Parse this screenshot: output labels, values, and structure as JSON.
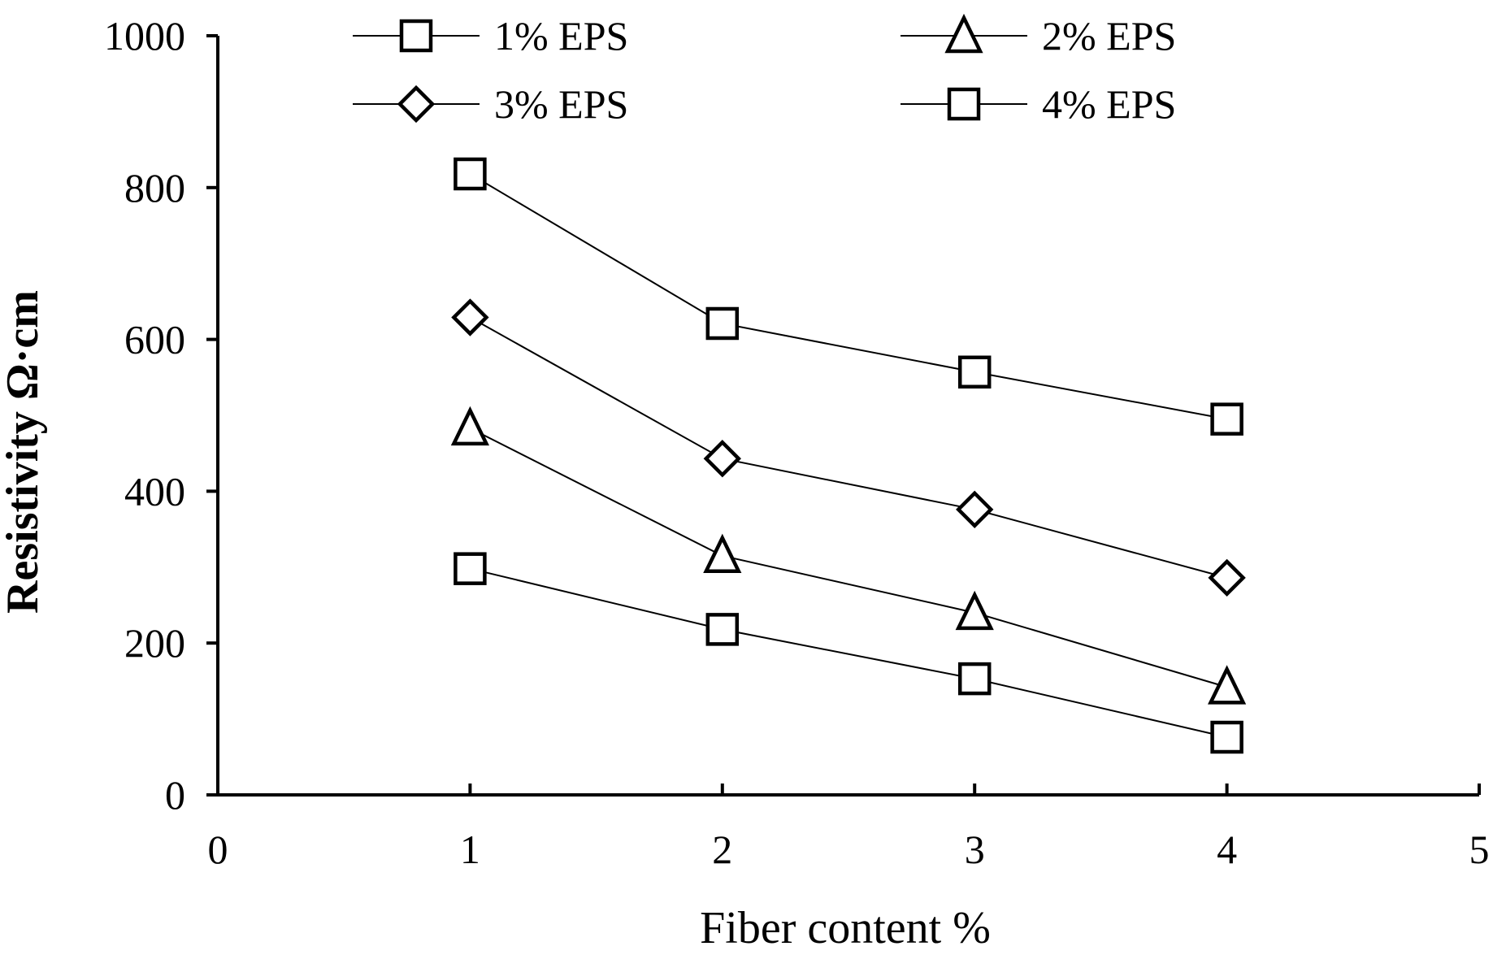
{
  "chart_data": {
    "type": "line",
    "title": "",
    "xlabel": "Fiber content %",
    "ylabel": "Resistivity Ω·cm",
    "xlim": [
      0,
      5
    ],
    "ylim": [
      0,
      1000
    ],
    "x_ticks": [
      "0",
      "1",
      "2",
      "3",
      "4",
      "5"
    ],
    "y_ticks": [
      "0",
      "200",
      "400",
      "600",
      "800",
      "1000"
    ],
    "grid": false,
    "legend_position": "top",
    "x": [
      1,
      2,
      3,
      4
    ],
    "series": [
      {
        "name": "1% EPS",
        "marker": "square",
        "values": [
          298,
          218,
          153,
          76
        ]
      },
      {
        "name": "2% EPS",
        "marker": "triangle",
        "values": [
          483,
          315,
          240,
          142
        ]
      },
      {
        "name": "3% EPS",
        "marker": "diamond",
        "values": [
          629,
          443,
          376,
          286
        ]
      },
      {
        "name": "4% EPS",
        "marker": "square",
        "values": [
          818,
          621,
          557,
          495
        ]
      }
    ]
  },
  "colors": {
    "background": "#ffffff",
    "ink": "#000000"
  }
}
